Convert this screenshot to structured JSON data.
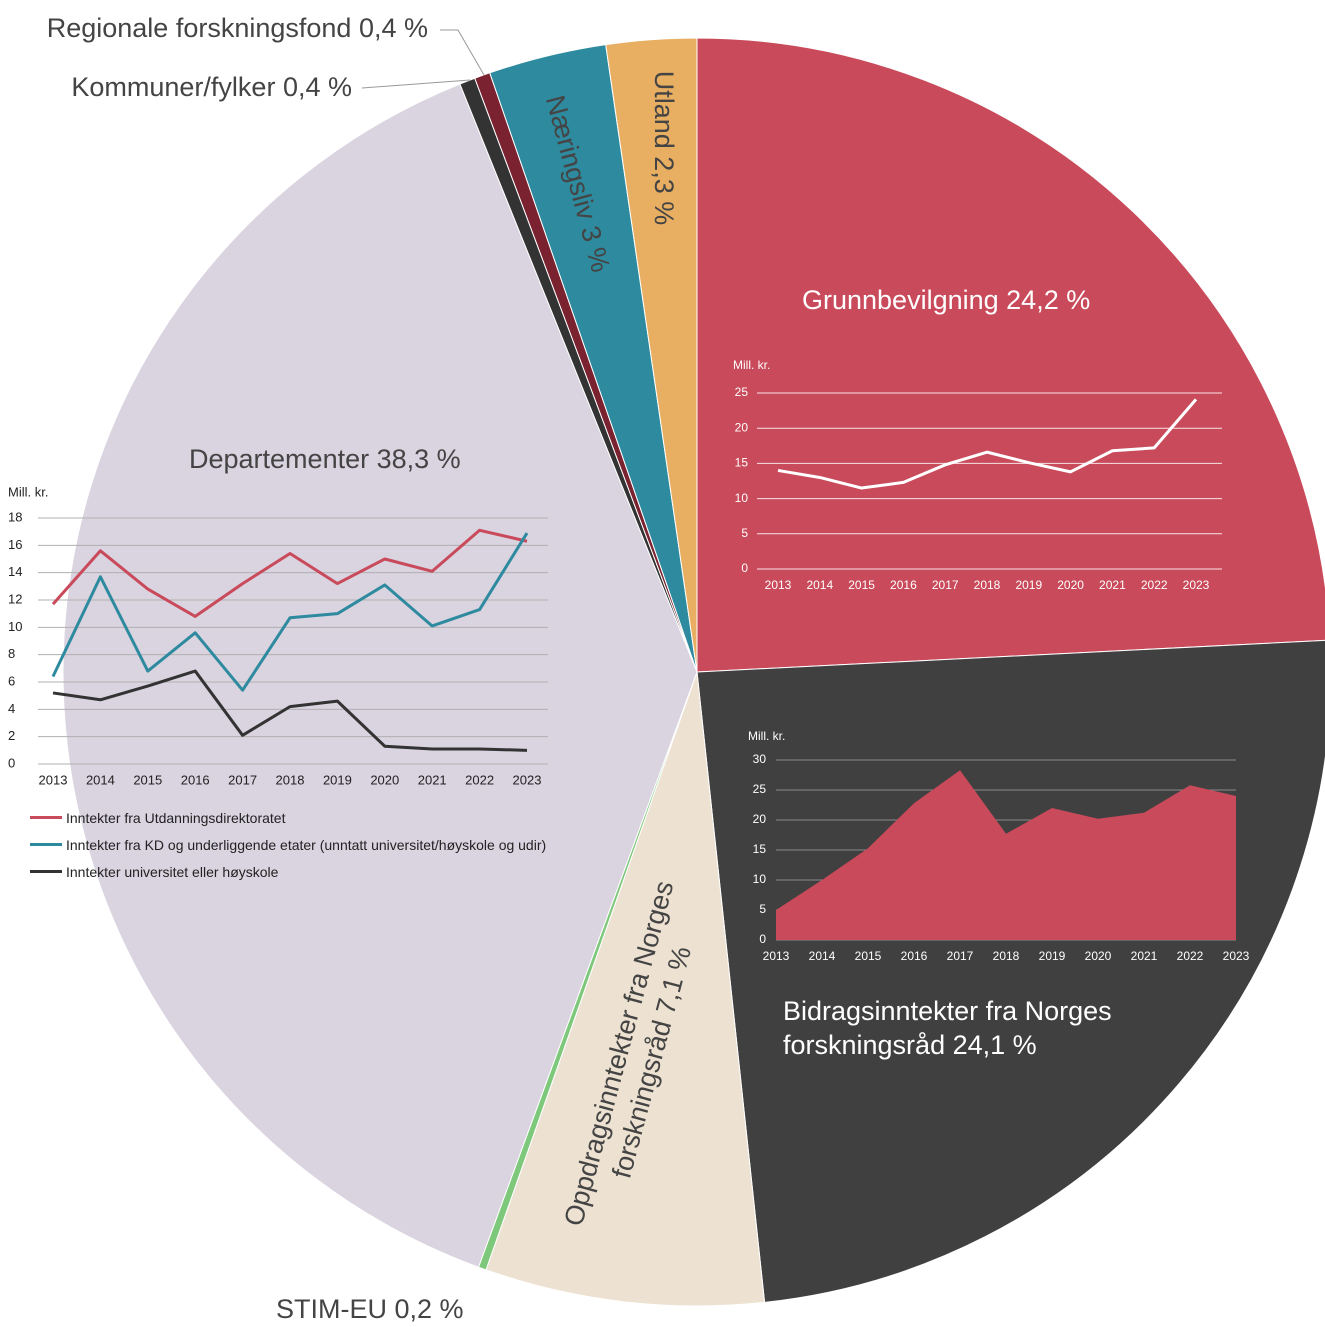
{
  "chart_data": [
    {
      "type": "pie",
      "categories": [
        "Grunnbevilgning",
        "Bidragsinntekter fra Norges forskningsråd",
        "Oppdragsinntekter fra Norges forskningsråd",
        "STIM-EU",
        "Departementer",
        "Kommuner/fylker",
        "Regionale forskningsfond",
        "Næringsliv",
        "Utland"
      ],
      "values": [
        24.2,
        24.1,
        7.1,
        0.2,
        38.3,
        0.4,
        0.4,
        3,
        2.3
      ],
      "value_labels": [
        "24,2 %",
        "24,1 %",
        "7,1 %",
        "0,2 %",
        "38,3 %",
        "0,4 %",
        "0,4 %",
        "3 %",
        "2,3 %"
      ],
      "colors": [
        "#c94a5a",
        "#404040",
        "#ede1d1",
        "#7dc87a",
        "#dad3e0",
        "#333333",
        "#7a2230",
        "#2e8a9e",
        "#e8ae62"
      ]
    },
    {
      "type": "line",
      "ylabel": "Mill. kr.",
      "categories": [
        "2013",
        "2014",
        "2015",
        "2016",
        "2017",
        "2018",
        "2019",
        "2020",
        "2021",
        "2022",
        "2023"
      ],
      "values": [
        14,
        13,
        11.5,
        12.3,
        14.8,
        16.6,
        15.1,
        13.8,
        16.8,
        17.2,
        24.1
      ],
      "color": "#ffffff",
      "ylim": [
        0,
        25
      ],
      "yticks": [
        0,
        5,
        10,
        15,
        20,
        25
      ],
      "grid": true
    },
    {
      "type": "area",
      "ylabel": "Mill. kr.",
      "categories": [
        "2013",
        "2014",
        "2015",
        "2016",
        "2017",
        "2018",
        "2019",
        "2020",
        "2021",
        "2022",
        "2023"
      ],
      "values": [
        5,
        10,
        15.3,
        22.8,
        28.3,
        17.7,
        22,
        20.2,
        21.2,
        25.8,
        24
      ],
      "color": "#c94a5a",
      "ylim": [
        0,
        30
      ],
      "yticks": [
        0,
        5,
        10,
        15,
        20,
        25,
        30
      ],
      "grid": true
    },
    {
      "type": "line",
      "ylabel": "Mill. kr.",
      "categories": [
        "2013",
        "2014",
        "2015",
        "2016",
        "2017",
        "2018",
        "2019",
        "2020",
        "2021",
        "2022",
        "2023"
      ],
      "series": [
        {
          "name": "Inntekter fra Utdanningsdirektoratet",
          "color": "#c94a5a",
          "values": [
            11.7,
            15.6,
            12.8,
            10.8,
            13.2,
            15.4,
            13.2,
            15.0,
            14.1,
            17.1,
            16.3
          ]
        },
        {
          "name": "Inntekter fra KD og underliggende etater (unntatt universitet/høyskole og udir)",
          "color": "#2e8a9e",
          "values": [
            6.4,
            13.7,
            6.8,
            9.6,
            5.4,
            10.7,
            11.0,
            13.1,
            10.1,
            11.3,
            16.9
          ]
        },
        {
          "name": "Inntekter universitet eller høyskole",
          "color": "#333333",
          "values": [
            5.2,
            4.7,
            5.7,
            6.8,
            2.1,
            4.2,
            4.6,
            1.3,
            1.1,
            1.1,
            1.0
          ]
        }
      ],
      "ylim": [
        0,
        18
      ],
      "yticks": [
        0,
        2,
        4,
        6,
        8,
        10,
        12,
        14,
        16,
        18
      ],
      "grid": true
    }
  ]
}
